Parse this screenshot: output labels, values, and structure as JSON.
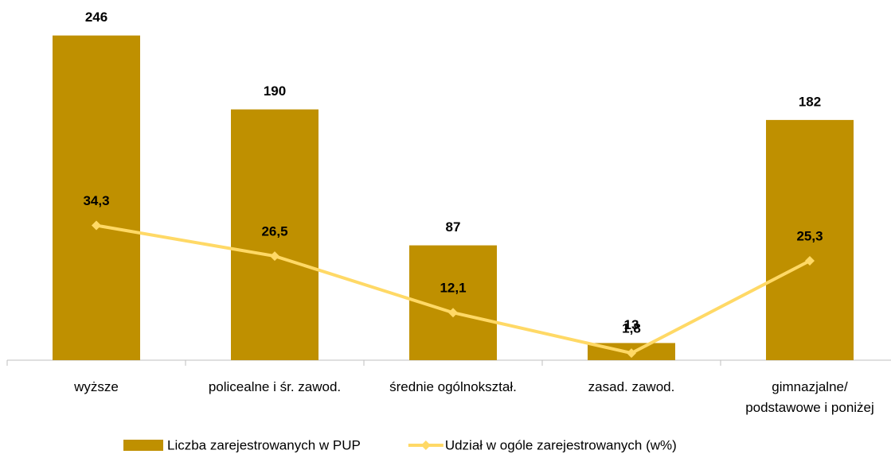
{
  "chart_data": {
    "type": "bar_line",
    "categories": [
      "wyższe",
      "policealne i śr. zawod.",
      "średnie ogólnokształ.",
      "zasad. zawod.",
      "gimnazjalne/\npodstawowe i poniżej"
    ],
    "series": [
      {
        "name": "Liczba zarejestrowanych w PUP",
        "type": "bar",
        "color": "#bf9000",
        "values": [
          246,
          190,
          87,
          13,
          182
        ]
      },
      {
        "name": "Udział w ogóle zarejestrowanych (w%)",
        "type": "line",
        "color": "#ffd966",
        "axis": "y2",
        "values": [
          34.3,
          26.5,
          12.1,
          1.8,
          25.3
        ],
        "value_labels": [
          "34,3",
          "26,5",
          "12,1",
          "1,8",
          "25,3"
        ]
      }
    ],
    "ylim": [
      0,
      250
    ],
    "y2lim": [
      0,
      84
    ],
    "grid": false,
    "legend": "bottom"
  }
}
